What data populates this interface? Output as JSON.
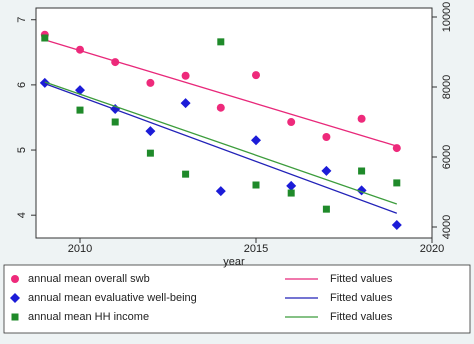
{
  "chart_data": {
    "type": "scatter",
    "x_label": "year",
    "x": [
      2009,
      2010,
      2011,
      2012,
      2013,
      2014,
      2015,
      2016,
      2017,
      2018,
      2019
    ],
    "xlim": [
      2008.75,
      2020
    ],
    "xticks": [
      2010,
      2015,
      2020
    ],
    "ylim": [
      3.65,
      7.18
    ],
    "yticks": [
      4,
      5,
      6,
      7
    ],
    "y2lim": [
      3686,
      10257
    ],
    "y2ticks": [
      4000,
      6000,
      8000,
      10000
    ],
    "series": [
      {
        "name": "annual mean overall swb",
        "color": "#ee2a7b",
        "style": "circle",
        "values": [
          6.77,
          6.54,
          6.35,
          6.03,
          6.14,
          5.65,
          6.15,
          5.43,
          5.2,
          5.48,
          5.03
        ]
      },
      {
        "name": "Fitted values",
        "color": "#e8287a",
        "style": "line",
        "x": [
          2009,
          2019
        ],
        "values": [
          6.69,
          5.06
        ]
      },
      {
        "name": "annual mean evaluative well-being",
        "color": "#1c1cd8",
        "style": "diamond",
        "values": [
          6.03,
          5.92,
          5.63,
          5.29,
          5.72,
          4.37,
          5.15,
          4.45,
          4.68,
          4.38,
          3.85
        ]
      },
      {
        "name": "Fitted values",
        "color": "#2222b8",
        "style": "line",
        "x": [
          2009,
          2019
        ],
        "values": [
          6.02,
          4.03
        ]
      },
      {
        "name": "annual mean HH income",
        "color": "#1f8a2a",
        "style": "square",
        "axis": "y2",
        "values": [
          9400,
          7340,
          7000,
          6110,
          5510,
          9290,
          5200,
          4970,
          4510,
          5600,
          5260
        ]
      },
      {
        "name": "Fitted values",
        "color": "#3c9c3c",
        "style": "line",
        "axis": "y2",
        "x": [
          2009,
          2019
        ],
        "values": [
          8143,
          4657
        ]
      }
    ]
  }
}
